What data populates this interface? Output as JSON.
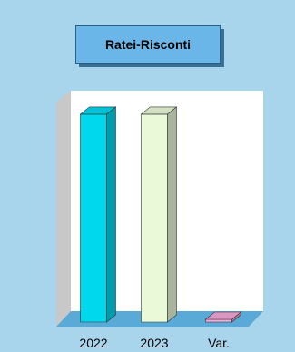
{
  "chart_data": {
    "type": "bar",
    "title": "Ratei-Risconti",
    "categories": [
      "2022",
      "2023",
      "Var."
    ],
    "values": [
      1.0,
      1.0,
      0.0
    ],
    "ylim": [
      0,
      1.1
    ],
    "grid": false,
    "colors": [
      "#00d8ee",
      "#eafad9",
      "#f2a8d8"
    ]
  }
}
